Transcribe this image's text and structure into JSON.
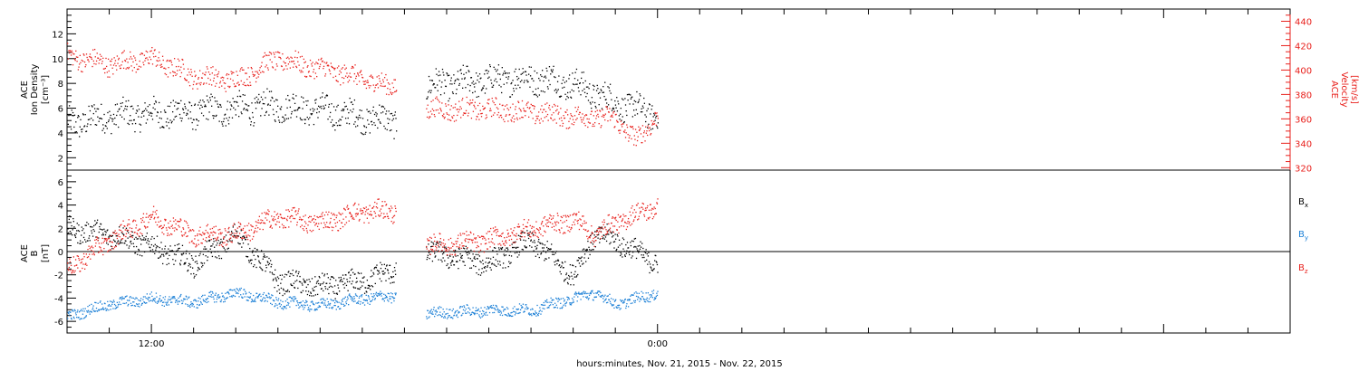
{
  "chart_data": [
    {
      "type": "scatter",
      "panel": "top",
      "ylabel_lines": [
        "ACE",
        "Ion Density",
        "[cm⁻³]"
      ],
      "ylim": [
        1.0,
        14.0
      ],
      "yticks": [
        "2",
        "4",
        "6",
        "8",
        "10",
        "12"
      ],
      "y2label_lines": [
        "ACE",
        "Velocity",
        "[km/s]"
      ],
      "y2lim": [
        318,
        450
      ],
      "y2ticks": [
        "320",
        "340",
        "360",
        "380",
        "400",
        "420",
        "440"
      ],
      "xlim_hours": [
        -14.0,
        15.0
      ],
      "series": [
        {
          "axis": "left",
          "color": "#000000",
          "data_gap": [
            -6.2,
            -5.5
          ],
          "trend_x": [
            -14.0,
            -13.0,
            -12.0,
            -11.0,
            -10.0,
            -9.0,
            -8.0,
            -7.0,
            -6.2,
            -5.5,
            -5.0,
            -4.0,
            -3.0,
            -2.0,
            -1.0,
            0.0
          ],
          "trend_y": [
            4.8,
            5.4,
            5.6,
            5.7,
            6.0,
            6.2,
            5.9,
            5.3,
            5.0,
            7.8,
            8.0,
            8.3,
            8.5,
            8.0,
            6.5,
            5.5
          ]
        },
        {
          "axis": "right",
          "color": "#e8201c",
          "data_gap": [
            -6.2,
            -5.5
          ],
          "trend_x": [
            -14.0,
            -13.0,
            -12.0,
            -11.0,
            -10.0,
            -9.0,
            -8.5,
            -7.5,
            -6.5,
            -6.2,
            -5.5,
            -4.0,
            -3.0,
            -2.0,
            -1.5,
            -1.0,
            -0.5,
            0.0
          ],
          "trend_y": [
            412,
            405,
            410,
            395,
            392,
            410,
            405,
            398,
            388,
            388,
            368,
            368,
            366,
            362,
            362,
            360,
            342,
            365
          ]
        }
      ]
    },
    {
      "type": "scatter",
      "panel": "bottom",
      "ylabel_lines": [
        "ACE",
        "B",
        "[nT]"
      ],
      "ylim": [
        -7.0,
        7.0
      ],
      "yticks": [
        "-6",
        "-4",
        "-2",
        "0",
        "2",
        "4",
        "6"
      ],
      "xlim_hours": [
        -14.0,
        15.0
      ],
      "xticks": [
        "12:00",
        "0:00"
      ],
      "xlabel": "hours:minutes, Nov. 21, 2015 - Nov. 22, 2015",
      "series": [
        {
          "name": "Bx",
          "color": "#000000",
          "data_gap": [
            -6.2,
            -5.5
          ],
          "trend_x": [
            -14.0,
            -13.0,
            -12.0,
            -11.0,
            -10.0,
            -9.0,
            -8.0,
            -7.0,
            -6.2,
            -5.5,
            -4.0,
            -3.0,
            -2.0,
            -1.5,
            -1.0,
            0.0
          ],
          "trend_y": [
            2.0,
            1.5,
            0.5,
            -1.0,
            1.5,
            -2.5,
            -3.0,
            -2.5,
            -1.5,
            0.0,
            -1.0,
            1.0,
            -2.0,
            1.5,
            1.0,
            -1.0
          ]
        },
        {
          "name": "By",
          "color": "#1a7fd6",
          "data_gap": [
            -6.2,
            -5.5
          ],
          "trend_x": [
            -14.0,
            -13.0,
            -12.0,
            -11.0,
            -10.0,
            -9.0,
            -8.0,
            -7.0,
            -6.2,
            -5.5,
            -4.0,
            -3.0,
            -2.0,
            -1.5,
            -1.0,
            0.0
          ],
          "trend_y": [
            -5.5,
            -4.5,
            -4.0,
            -4.3,
            -3.5,
            -4.3,
            -4.6,
            -4.0,
            -3.8,
            -5.3,
            -5.0,
            -5.0,
            -4.0,
            -3.5,
            -4.5,
            -3.5
          ]
        },
        {
          "name": "Bz",
          "color": "#e8201c",
          "data_gap": [
            -6.2,
            -5.5
          ],
          "trend_x": [
            -14.0,
            -13.0,
            -12.0,
            -11.0,
            -10.0,
            -9.0,
            -8.0,
            -7.0,
            -6.2,
            -5.5,
            -4.0,
            -3.0,
            -2.0,
            -1.5,
            -1.0,
            0.0
          ],
          "trend_y": [
            -1.5,
            1.0,
            3.0,
            1.5,
            1.5,
            3.0,
            2.5,
            3.5,
            3.5,
            0.5,
            1.0,
            2.0,
            2.8,
            1.5,
            2.5,
            4.0
          ]
        }
      ],
      "legend": [
        "B",
        "B",
        "B"
      ],
      "legend_subscripts": [
        "x",
        "y",
        "z"
      ]
    }
  ]
}
